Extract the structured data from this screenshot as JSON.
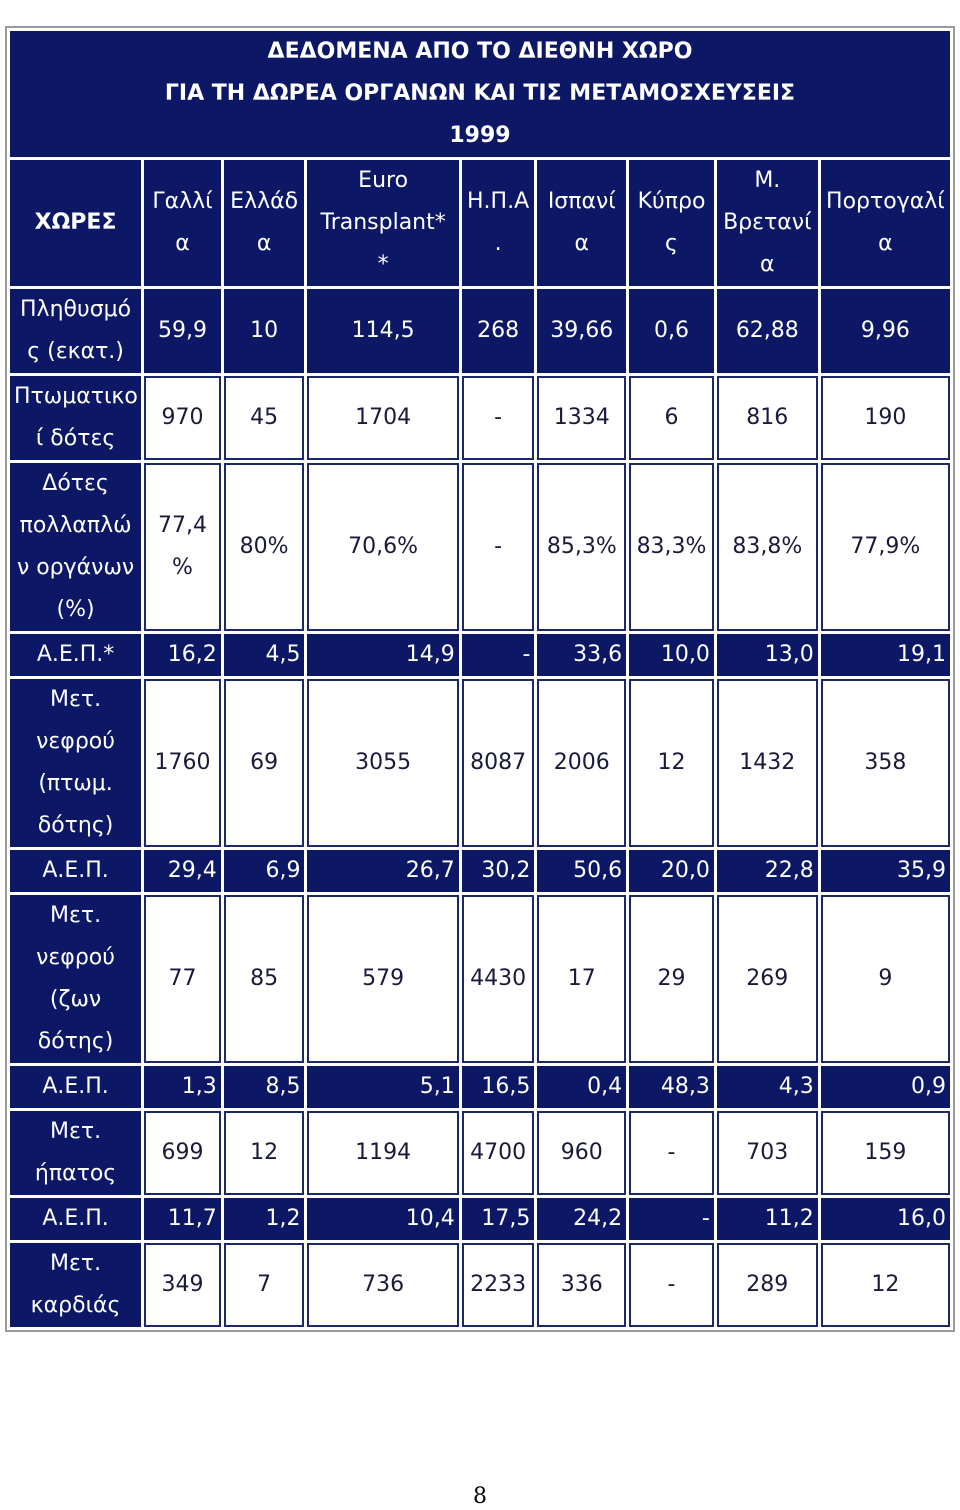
{
  "table": {
    "title": [
      "ΔΕΔΟΜΕΝΑ ΑΠΟ ΤΟ ΔΙΕΘΝΗ ΧΩΡΟ",
      "ΓΙΑ ΤΗ ΔΩΡΕΑ ΟΡΓΑΝΩΝ ΚΑΙ ΤΙΣ ΜΕΤΑΜΟΣΧΕΥΣΕΙΣ",
      "1999"
    ],
    "header": {
      "label": "ΧΩΡΕΣ",
      "countries": [
        [
          "Γαλλί",
          "α"
        ],
        [
          "Ελλάδ",
          "α"
        ],
        [
          "Euro",
          "Transplant*",
          "*"
        ],
        [
          "Η.Π.Α",
          "."
        ],
        [
          "Ισπανί",
          "α"
        ],
        [
          "Κύπρο",
          "ς"
        ],
        [
          "Μ.",
          "Βρετανί",
          "α"
        ],
        [
          "Πορτογαλί",
          "α"
        ]
      ]
    },
    "rows": [
      {
        "label": [
          "Πληθυσμό",
          "ς (εκατ.)"
        ],
        "style": "navy",
        "values": [
          "59,9",
          "10",
          "114,5",
          "268",
          "39,66",
          "0,6",
          "62,88",
          "9,96"
        ]
      },
      {
        "label": [
          "Πτωματικο",
          "ί δότες"
        ],
        "style": "white",
        "values": [
          "970",
          "45",
          "1704",
          "-",
          "1334",
          "6",
          "816",
          "190"
        ]
      },
      {
        "label": [
          "Δότες",
          "πολλαπλώ",
          "ν οργάνων",
          "(%)"
        ],
        "style": "white",
        "values": [
          "77,4 %",
          "80%",
          "70,6%",
          "-",
          "85,3%",
          "83,3%",
          "83,8%",
          "77,9%"
        ]
      },
      {
        "label": [
          "Α.Ε.Π.*"
        ],
        "style": "navy",
        "values": [
          "16,2",
          "4,5",
          "14,9",
          "-",
          "33,6",
          "10,0",
          "13,0",
          "19,1"
        ]
      },
      {
        "label": [
          "Μετ.",
          "νεφρού",
          "(πτωμ.",
          "δότης)"
        ],
        "style": "white",
        "values": [
          "1760",
          "69",
          "3055",
          "8087",
          "2006",
          "12",
          "1432",
          "358"
        ]
      },
      {
        "label": [
          "Α.Ε.Π."
        ],
        "style": "navy",
        "values": [
          "29,4",
          "6,9",
          "26,7",
          "30,2",
          "50,6",
          "20,0",
          "22,8",
          "35,9"
        ]
      },
      {
        "label": [
          "Μετ.",
          "νεφρού",
          "(ζων",
          "δότης)"
        ],
        "style": "white",
        "values": [
          "77",
          "85",
          "579",
          "4430",
          "17",
          "29",
          "269",
          "9"
        ]
      },
      {
        "label": [
          "Α.Ε.Π."
        ],
        "style": "navy",
        "values": [
          "1,3",
          "8,5",
          "5,1",
          "16,5",
          "0,4",
          "48,3",
          "4,3",
          "0,9"
        ]
      },
      {
        "label": [
          "Μετ.",
          "ήπατος"
        ],
        "style": "white",
        "values": [
          "699",
          "12",
          "1194",
          "4700",
          "960",
          "-",
          "703",
          "159"
        ]
      },
      {
        "label": [
          "Α.Ε.Π."
        ],
        "style": "navy",
        "values": [
          "11,7",
          "1,2",
          "10,4",
          "17,5",
          "24,2",
          "-",
          "11,2",
          "16,0"
        ]
      },
      {
        "label": [
          "Μετ.",
          "καρδιάς"
        ],
        "style": "white",
        "values": [
          "349",
          "7",
          "736",
          "2233",
          "336",
          "-",
          "289",
          "12"
        ]
      }
    ]
  },
  "page_number": "8"
}
